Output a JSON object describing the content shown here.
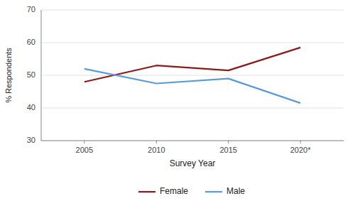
{
  "chart_data": {
    "type": "line",
    "x": [
      2005,
      2010,
      2015,
      2020
    ],
    "xlim": [
      2002,
      2023
    ],
    "xticks": [
      2005,
      2010,
      2015,
      {
        "value": 2020,
        "label": "2020*"
      }
    ],
    "xlabel": "Survey Year",
    "ylabel": "% Respondents",
    "ylim": [
      30,
      70
    ],
    "yticks": [
      30,
      40,
      50,
      60,
      70
    ],
    "grid": true,
    "legend": "bottom",
    "series": [
      {
        "name": "Female",
        "color": "#8B1A1A",
        "values": [
          48,
          53,
          51.5,
          58.5
        ]
      },
      {
        "name": "Male",
        "color": "#5B9BD5",
        "values": [
          52,
          47.5,
          49,
          41.5
        ]
      }
    ]
  }
}
